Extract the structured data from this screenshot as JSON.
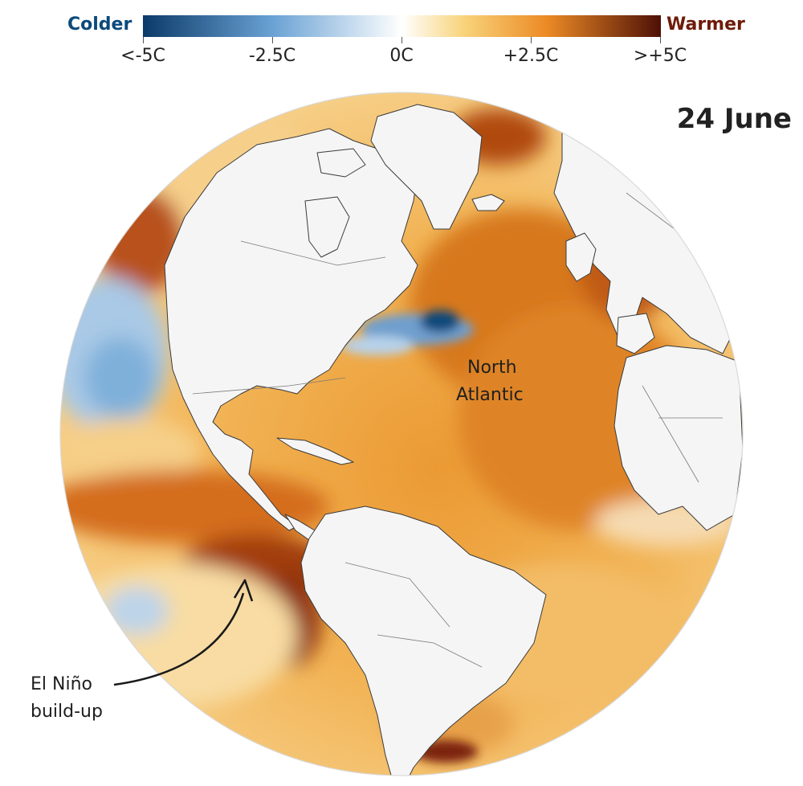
{
  "legend": {
    "colder_label": "Colder",
    "warmer_label": "Warmer",
    "ticks": [
      "<-5C",
      "-2.5C",
      "0C",
      "+2.5C",
      ">+5C"
    ],
    "colors": {
      "cold_end": "#0d3e6e",
      "cool": "#6fa6d6",
      "neutral": "#ffffff",
      "warm": "#f0a02a",
      "hot_end": "#5a1207"
    }
  },
  "date": "24 June",
  "annotations": {
    "north_atlantic": [
      "North",
      "Atlantic"
    ],
    "el_nino": [
      "El Niño",
      "build-up"
    ]
  },
  "colors": {
    "colder_text": "#0b4a7a",
    "warmer_text": "#6e1b09",
    "land": "#f4f4f4",
    "ocean_warm": "#eea03c"
  }
}
